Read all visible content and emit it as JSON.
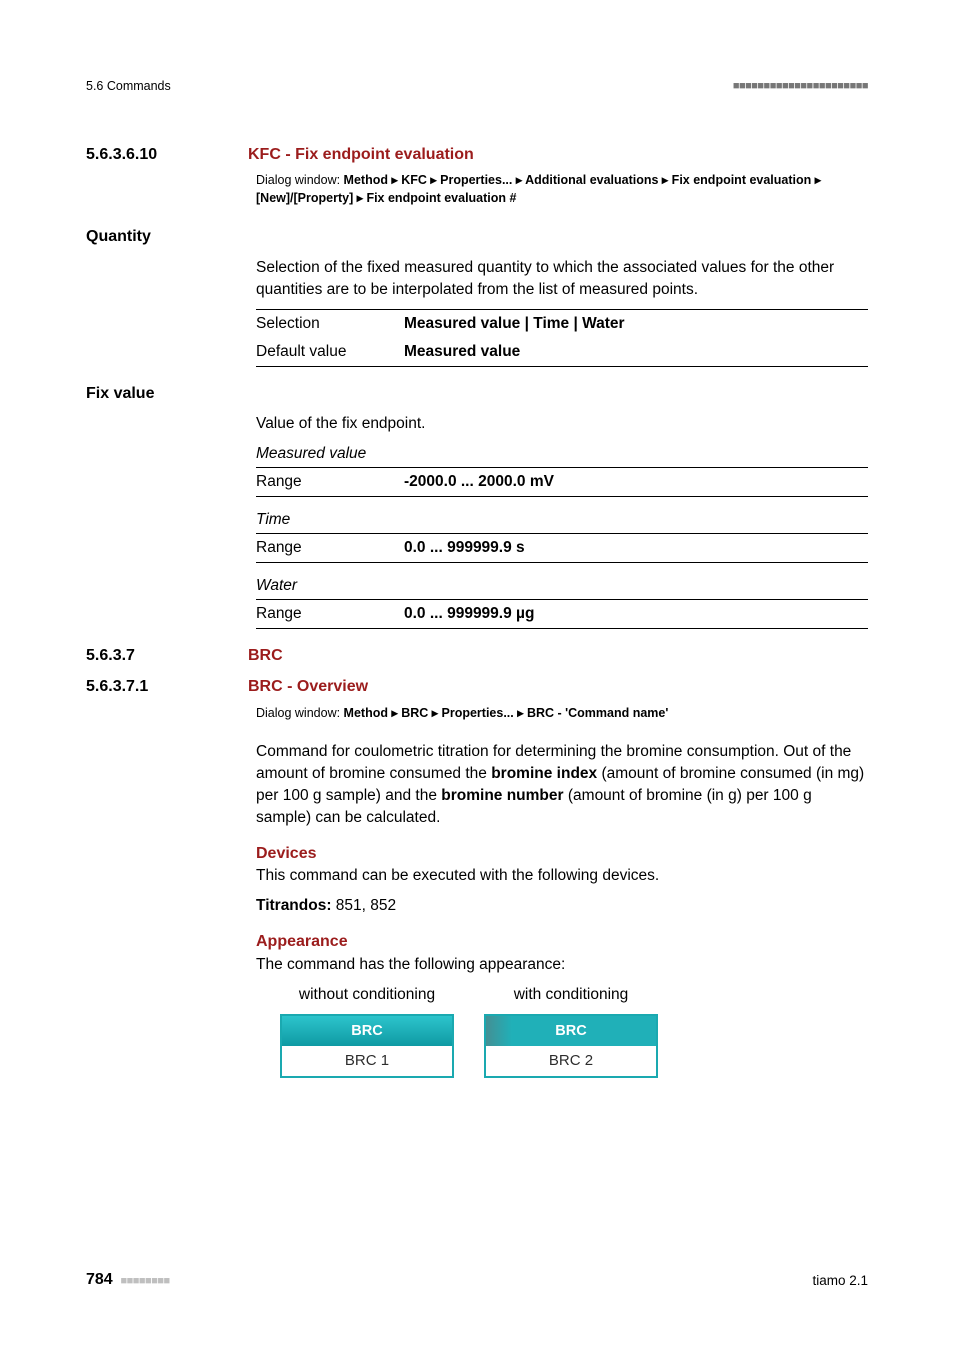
{
  "header": {
    "section": "5.6 Commands"
  },
  "sec6_10": {
    "num": "5.6.3.6.10",
    "title": "KFC - Fix endpoint evaluation",
    "breadcrumb_label": "Dialog window: ",
    "breadcrumb": "Method ▸ KFC ▸ Properties... ▸ Additional evaluations ▸ Fix endpoint evaluation  ▸ [New]/[Property] ▸ Fix endpoint evaluation #"
  },
  "quantity": {
    "heading": "Quantity",
    "desc": "Selection of the fixed measured quantity to which the associated values for the other quantities are to be interpolated from the list of measured points.",
    "row1_label": "Selection",
    "row1_val": "Measured value | Time | Water",
    "row2_label": "Default value",
    "row2_val": "Measured value"
  },
  "fixvalue": {
    "heading": "Fix value",
    "desc": "Value of the fix endpoint.",
    "mv_label": "Measured value",
    "mv_range_label": "Range",
    "mv_range": "-2000.0 ... 2000.0 mV",
    "t_label": "Time",
    "t_range_label": "Range",
    "t_range": "0.0 ... 999999.9 s",
    "w_label": "Water",
    "w_range_label": "Range",
    "w_range": "0.0 ... 999999.9 µg"
  },
  "sec7": {
    "num": "5.6.3.7",
    "title": "BRC"
  },
  "sec7_1": {
    "num": "5.6.3.7.1",
    "title": "BRC - Overview",
    "breadcrumb_label": "Dialog window: ",
    "breadcrumb": "Method ▸ BRC ▸ Properties... ▸ BRC - 'Command name'",
    "p1a": "Command for coulometric titration for determining the bromine consumption. Out of the amount of bromine consumed the ",
    "p1b": "bromine index",
    "p1c": " (amount of bromine consumed (in mg) per 100 g sample) and the ",
    "p1d": "bromine number",
    "p1e": " (amount of bromine (in g) per 100 g sample) can be calculated.",
    "devices_h": "Devices",
    "devices_p": "This command can be executed with the following devices.",
    "titrandos_l": "Titrandos:",
    "titrandos_v": " 851, 852",
    "appearance_h": "Appearance",
    "appearance_p": "The command has the following appearance:",
    "cap1": "without conditioning",
    "cap2": "with conditioning",
    "box_label": "BRC",
    "box1_sub": "BRC 1",
    "box2_sub": "BRC 2"
  },
  "footer": {
    "page": "784",
    "right": "tiamo 2.1"
  }
}
